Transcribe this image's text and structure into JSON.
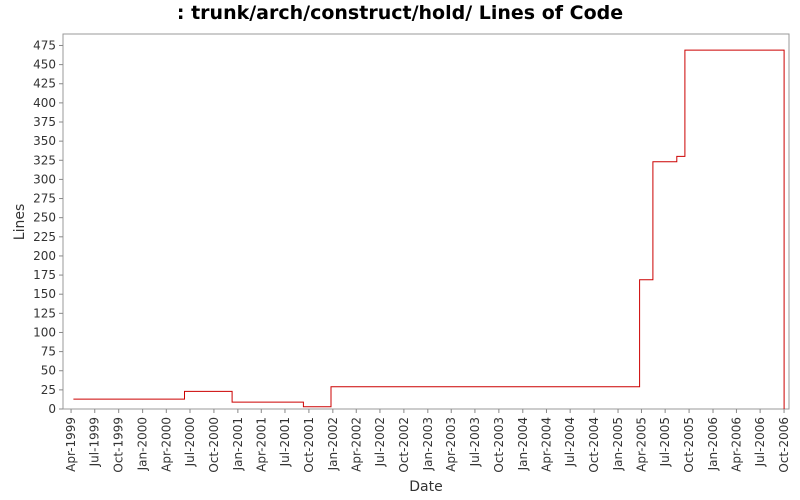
{
  "chart_data": {
    "type": "line",
    "title": ": trunk/arch/construct/hold/ Lines of Code",
    "xlabel": "Date",
    "ylabel": "Lines",
    "step": true,
    "ylim": [
      0,
      490
    ],
    "xlim": [
      "1999-03-01",
      "2006-10-20"
    ],
    "y_ticks": [
      0,
      25,
      50,
      75,
      100,
      125,
      150,
      175,
      200,
      225,
      250,
      275,
      300,
      325,
      350,
      375,
      400,
      425,
      450,
      475
    ],
    "x_ticks": [
      "1999-04-01",
      "1999-07-01",
      "1999-10-01",
      "2000-01-01",
      "2000-04-01",
      "2000-07-01",
      "2000-10-01",
      "2001-01-01",
      "2001-04-01",
      "2001-07-01",
      "2001-10-01",
      "2002-01-01",
      "2002-04-01",
      "2002-07-01",
      "2002-10-01",
      "2003-01-01",
      "2003-04-01",
      "2003-07-01",
      "2003-10-01",
      "2004-01-01",
      "2004-04-01",
      "2004-07-01",
      "2004-10-01",
      "2005-01-01",
      "2005-04-01",
      "2005-07-01",
      "2005-10-01",
      "2006-01-01",
      "2006-04-01",
      "2006-07-01",
      "2006-10-01"
    ],
    "x_tick_labels": [
      "Apr-1999",
      "Jul-1999",
      "Oct-1999",
      "Jan-2000",
      "Apr-2000",
      "Jul-2000",
      "Oct-2000",
      "Jan-2001",
      "Apr-2001",
      "Jul-2001",
      "Oct-2001",
      "Jan-2002",
      "Apr-2002",
      "Jul-2002",
      "Oct-2002",
      "Jan-2003",
      "Apr-2003",
      "Jul-2003",
      "Oct-2003",
      "Jan-2004",
      "Apr-2004",
      "Jul-2004",
      "Oct-2004",
      "Jan-2005",
      "Apr-2005",
      "Jul-2005",
      "Oct-2005",
      "Jan-2006",
      "Apr-2006",
      "Jul-2006",
      "Oct-2006"
    ],
    "series": [
      {
        "color": "#cc0000",
        "points": [
          [
            "1999-04-10",
            13
          ],
          [
            "2000-06-10",
            23
          ],
          [
            "2000-12-10",
            9
          ],
          [
            "2001-09-10",
            3
          ],
          [
            "2001-12-25",
            29
          ],
          [
            "2005-03-25",
            169
          ],
          [
            "2005-05-15",
            323
          ],
          [
            "2005-08-15",
            330
          ],
          [
            "2005-09-15",
            469
          ],
          [
            "2006-10-01",
            0
          ]
        ]
      }
    ]
  }
}
